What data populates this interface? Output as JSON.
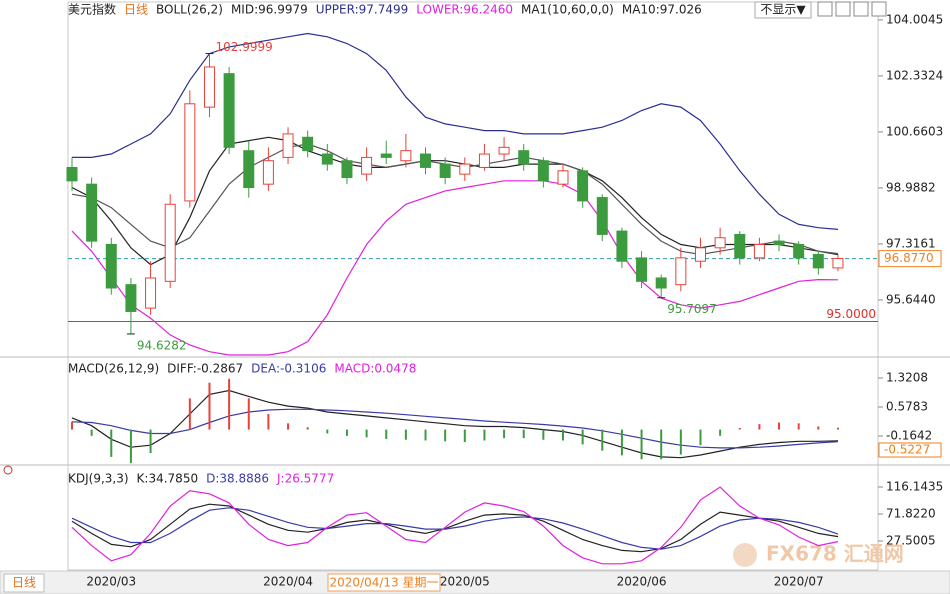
{
  "header": {
    "symbol": "美元指数",
    "period": "日线",
    "hide_button": "不显示▼"
  },
  "chart_data": [
    {
      "type": "candlestick",
      "indicator": "BOLL(26,2)",
      "ma_label": "MA1(10,60,0,0)",
      "up_color": "#e8413a",
      "down_color": "#3d9b3f",
      "open": [
        99.6,
        99.1,
        97.3,
        96.1,
        95.4,
        96.2,
        98.6,
        101.4,
        102.4,
        100.1,
        99.1,
        99.9,
        100.5,
        100.0,
        99.8,
        99.4,
        100.0,
        99.8,
        100.0,
        99.7,
        99.4,
        99.6,
        100.0,
        100.1,
        99.8,
        99.1,
        99.5,
        98.7,
        97.7,
        96.9,
        96.3,
        96.1,
        96.8,
        97.2,
        97.6,
        96.9,
        97.4,
        97.3,
        97.0,
        96.6
      ],
      "high": [
        99.9,
        99.3,
        97.5,
        96.3,
        96.8,
        98.8,
        101.9,
        102.9999,
        102.6,
        100.4,
        100.2,
        100.8,
        100.7,
        100.3,
        99.9,
        100.2,
        100.4,
        100.6,
        100.2,
        99.9,
        99.9,
        100.3,
        100.5,
        100.3,
        99.9,
        99.7,
        99.6,
        98.8,
        97.8,
        97.1,
        96.4,
        97.2,
        97.5,
        97.8,
        97.7,
        97.5,
        97.6,
        97.4,
        97.1,
        97.0
      ],
      "low": [
        98.9,
        97.2,
        95.8,
        94.6282,
        95.2,
        96.0,
        98.4,
        101.1,
        100.0,
        98.7,
        98.9,
        99.7,
        99.9,
        99.5,
        99.1,
        99.2,
        99.7,
        99.6,
        99.4,
        99.1,
        99.2,
        99.5,
        99.8,
        99.5,
        99.0,
        99.0,
        98.4,
        97.4,
        96.6,
        96.0,
        95.7097,
        95.9,
        96.6,
        97.0,
        96.7,
        96.8,
        97.1,
        96.7,
        96.4,
        96.5
      ],
      "close": [
        99.2,
        97.4,
        96.0,
        95.3,
        96.3,
        98.5,
        101.5,
        102.6,
        100.2,
        99.0,
        99.8,
        100.6,
        100.1,
        99.7,
        99.3,
        99.9,
        99.9,
        100.1,
        99.6,
        99.3,
        99.7,
        100.0,
        100.2,
        99.7,
        99.2,
        99.5,
        98.6,
        97.6,
        96.8,
        96.2,
        96.0,
        96.9,
        97.2,
        97.5,
        96.9,
        97.3,
        97.3,
        96.9,
        96.6,
        96.88
      ],
      "series": [
        {
          "name": "MID:96.9979",
          "color": "#222222",
          "values": [
            99.0,
            98.7,
            98.0,
            97.2,
            96.7,
            97.0,
            98.1,
            99.5,
            100.3,
            100.4,
            100.5,
            100.4,
            100.1,
            99.9,
            99.7,
            99.6,
            99.6,
            99.7,
            99.8,
            99.8,
            99.7,
            99.6,
            99.6,
            99.7,
            99.7,
            99.7,
            99.5,
            99.2,
            98.7,
            98.1,
            97.6,
            97.3,
            97.2,
            97.3,
            97.3,
            97.3,
            97.3,
            97.2,
            97.1,
            96.9979
          ]
        },
        {
          "name": "UPPER:97.7499",
          "color": "#2b2f8f",
          "values": [
            99.9,
            99.9,
            100.0,
            100.3,
            100.6,
            101.2,
            102.2,
            103.0,
            103.2,
            103.3,
            103.4,
            103.5,
            103.6,
            103.5,
            103.3,
            103.0,
            102.5,
            101.7,
            101.1,
            100.9,
            100.8,
            100.7,
            100.7,
            100.6,
            100.6,
            100.6,
            100.7,
            100.8,
            101.0,
            101.3,
            101.5,
            101.4,
            101.0,
            100.3,
            99.5,
            98.8,
            98.2,
            97.9,
            97.8,
            97.7499
          ]
        },
        {
          "name": "LOWER:96.2460",
          "color": "#e020e0",
          "values": [
            97.7,
            97.1,
            96.3,
            95.5,
            95.1,
            94.6,
            94.3,
            94.1,
            94.0,
            94.0,
            94.0,
            94.1,
            94.4,
            95.2,
            96.3,
            97.3,
            98.0,
            98.5,
            98.7,
            98.9,
            99.0,
            99.1,
            99.2,
            99.2,
            99.2,
            99.1,
            98.8,
            98.0,
            97.0,
            96.2,
            95.7,
            95.5,
            95.4,
            95.5,
            95.6,
            95.8,
            96.0,
            96.2,
            96.25,
            96.246
          ]
        },
        {
          "name": "MA10:97.026",
          "color": "#555555",
          "values": [
            98.8,
            98.7,
            98.4,
            97.9,
            97.4,
            97.2,
            97.5,
            98.3,
            99.1,
            99.6,
            99.9,
            100.2,
            100.3,
            100.1,
            99.8,
            99.7,
            99.6,
            99.7,
            99.8,
            99.7,
            99.6,
            99.7,
            99.8,
            99.9,
            99.8,
            99.7,
            99.5,
            99.1,
            98.5,
            97.9,
            97.4,
            97.1,
            97.0,
            97.1,
            97.2,
            97.3,
            97.4,
            97.3,
            97.1,
            97.026
          ]
        }
      ],
      "annotations": [
        {
          "index": 7,
          "value": 102.9999,
          "label": "102.9999",
          "color": "#e8413a"
        },
        {
          "index": 3,
          "value": 94.6282,
          "label": "94.6282",
          "color": "#3d9b3f"
        },
        {
          "index": 30,
          "value": 95.7097,
          "label": "95.7097",
          "color": "#3d9b3f"
        }
      ],
      "levels": [
        {
          "value": 96.877,
          "label": "96.8770",
          "color": "#2a9bb0",
          "style": "dashed"
        },
        {
          "value": 95.0,
          "label": "95.0000",
          "color": "#e0302a",
          "style": "solid"
        }
      ],
      "ylim": [
        94.0,
        104.36
      ],
      "yticks": [
        104.0045,
        102.3324,
        100.6603,
        98.9882,
        97.3161,
        {
          "value": 95.644,
          "label": "95.6440"
        }
      ]
    },
    {
      "type": "macd",
      "title": "MACD(26,12,9)",
      "series": [
        {
          "name": "DIFF:-0.2867",
          "color": "#222222",
          "values": [
            0.3,
            0.1,
            -0.25,
            -0.45,
            -0.4,
            -0.1,
            0.4,
            0.9,
            1.0,
            0.85,
            0.7,
            0.6,
            0.55,
            0.45,
            0.4,
            0.35,
            0.3,
            0.25,
            0.2,
            0.15,
            0.1,
            0.08,
            0.08,
            0.05,
            0.0,
            -0.05,
            -0.15,
            -0.3,
            -0.45,
            -0.6,
            -0.7,
            -0.72,
            -0.65,
            -0.55,
            -0.45,
            -0.38,
            -0.33,
            -0.3,
            -0.3,
            -0.2867
          ]
        },
        {
          "name": "DEA:-0.3106",
          "color": "#3a3aa8",
          "values": [
            0.2,
            0.18,
            0.1,
            -0.02,
            -0.1,
            -0.1,
            0.0,
            0.18,
            0.35,
            0.45,
            0.5,
            0.52,
            0.52,
            0.5,
            0.48,
            0.45,
            0.42,
            0.38,
            0.34,
            0.3,
            0.26,
            0.22,
            0.19,
            0.16,
            0.13,
            0.09,
            0.04,
            -0.03,
            -0.12,
            -0.22,
            -0.32,
            -0.4,
            -0.45,
            -0.47,
            -0.47,
            -0.45,
            -0.42,
            -0.38,
            -0.34,
            -0.3106
          ]
        },
        {
          "name": "MACD:0.0478",
          "color": "#e020e0",
          "bars": true,
          "values": [
            0.2,
            -0.16,
            -0.7,
            -0.86,
            -0.6,
            0.0,
            0.8,
            1.2,
            1.3,
            0.8,
            0.4,
            0.16,
            0.06,
            -0.1,
            -0.16,
            -0.2,
            -0.24,
            -0.26,
            -0.28,
            -0.3,
            -0.32,
            -0.28,
            -0.22,
            -0.22,
            -0.26,
            -0.28,
            -0.38,
            -0.54,
            -0.66,
            -0.76,
            -0.76,
            -0.64,
            -0.4,
            -0.16,
            0.04,
            0.14,
            0.18,
            0.16,
            0.08,
            0.0478
          ]
        }
      ],
      "levels": [
        {
          "value": -0.5227,
          "label": "-0.5227",
          "color": "#f08020",
          "style": "label"
        }
      ],
      "ylim": [
        -0.83,
        1.73
      ],
      "yticks": [
        1.3208,
        0.5783,
        -0.1642
      ]
    },
    {
      "type": "line",
      "title": "KDJ(9,3,3)",
      "series": [
        {
          "name": "K:34.7850",
          "color": "#222222",
          "values": [
            60,
            40,
            22,
            18,
            30,
            55,
            80,
            88,
            85,
            70,
            55,
            45,
            42,
            48,
            58,
            62,
            55,
            45,
            40,
            48,
            60,
            70,
            72,
            70,
            60,
            45,
            30,
            20,
            12,
            10,
            15,
            30,
            55,
            75,
            70,
            65,
            60,
            50,
            40,
            34.785
          ]
        },
        {
          "name": "D:38.8886",
          "color": "#3a3aa8",
          "values": [
            65,
            50,
            35,
            25,
            25,
            40,
            60,
            78,
            82,
            78,
            68,
            58,
            50,
            48,
            52,
            56,
            56,
            52,
            47,
            47,
            52,
            60,
            65,
            67,
            64,
            57,
            47,
            36,
            25,
            17,
            14,
            20,
            35,
            52,
            62,
            65,
            63,
            58,
            50,
            38.8886
          ]
        },
        {
          "name": "J:26.5777",
          "color": "#e020e0",
          "values": [
            50,
            20,
            -5,
            5,
            40,
            85,
            110,
            105,
            90,
            55,
            30,
            20,
            25,
            50,
            70,
            74,
            52,
            30,
            25,
            50,
            75,
            90,
            85,
            76,
            52,
            20,
            0,
            -10,
            -10,
            -5,
            17,
            50,
            95,
            116,
            85,
            65,
            54,
            34,
            20,
            26.5777
          ]
        }
      ],
      "categories": [
        null,
        null,
        "2020/03",
        null,
        null,
        null,
        null,
        null,
        null,
        null,
        null,
        "2020/04",
        null,
        null,
        null,
        null,
        null,
        null,
        null,
        null,
        "2020/05",
        null,
        null,
        null,
        null,
        null,
        null,
        null,
        null,
        "2020/06",
        null,
        null,
        null,
        null,
        null,
        null,
        null,
        "2020/07",
        null,
        null
      ],
      "ylim": [
        -20.1,
        140.8
      ],
      "yticks": [
        116.1435,
        {
          "value": 71.822,
          "label": "71.8220"
        },
        27.5005
      ]
    }
  ],
  "status": {
    "period": "日线",
    "cursor_date": "2020/04/13 星期一"
  },
  "watermark": "FX678 汇通网"
}
